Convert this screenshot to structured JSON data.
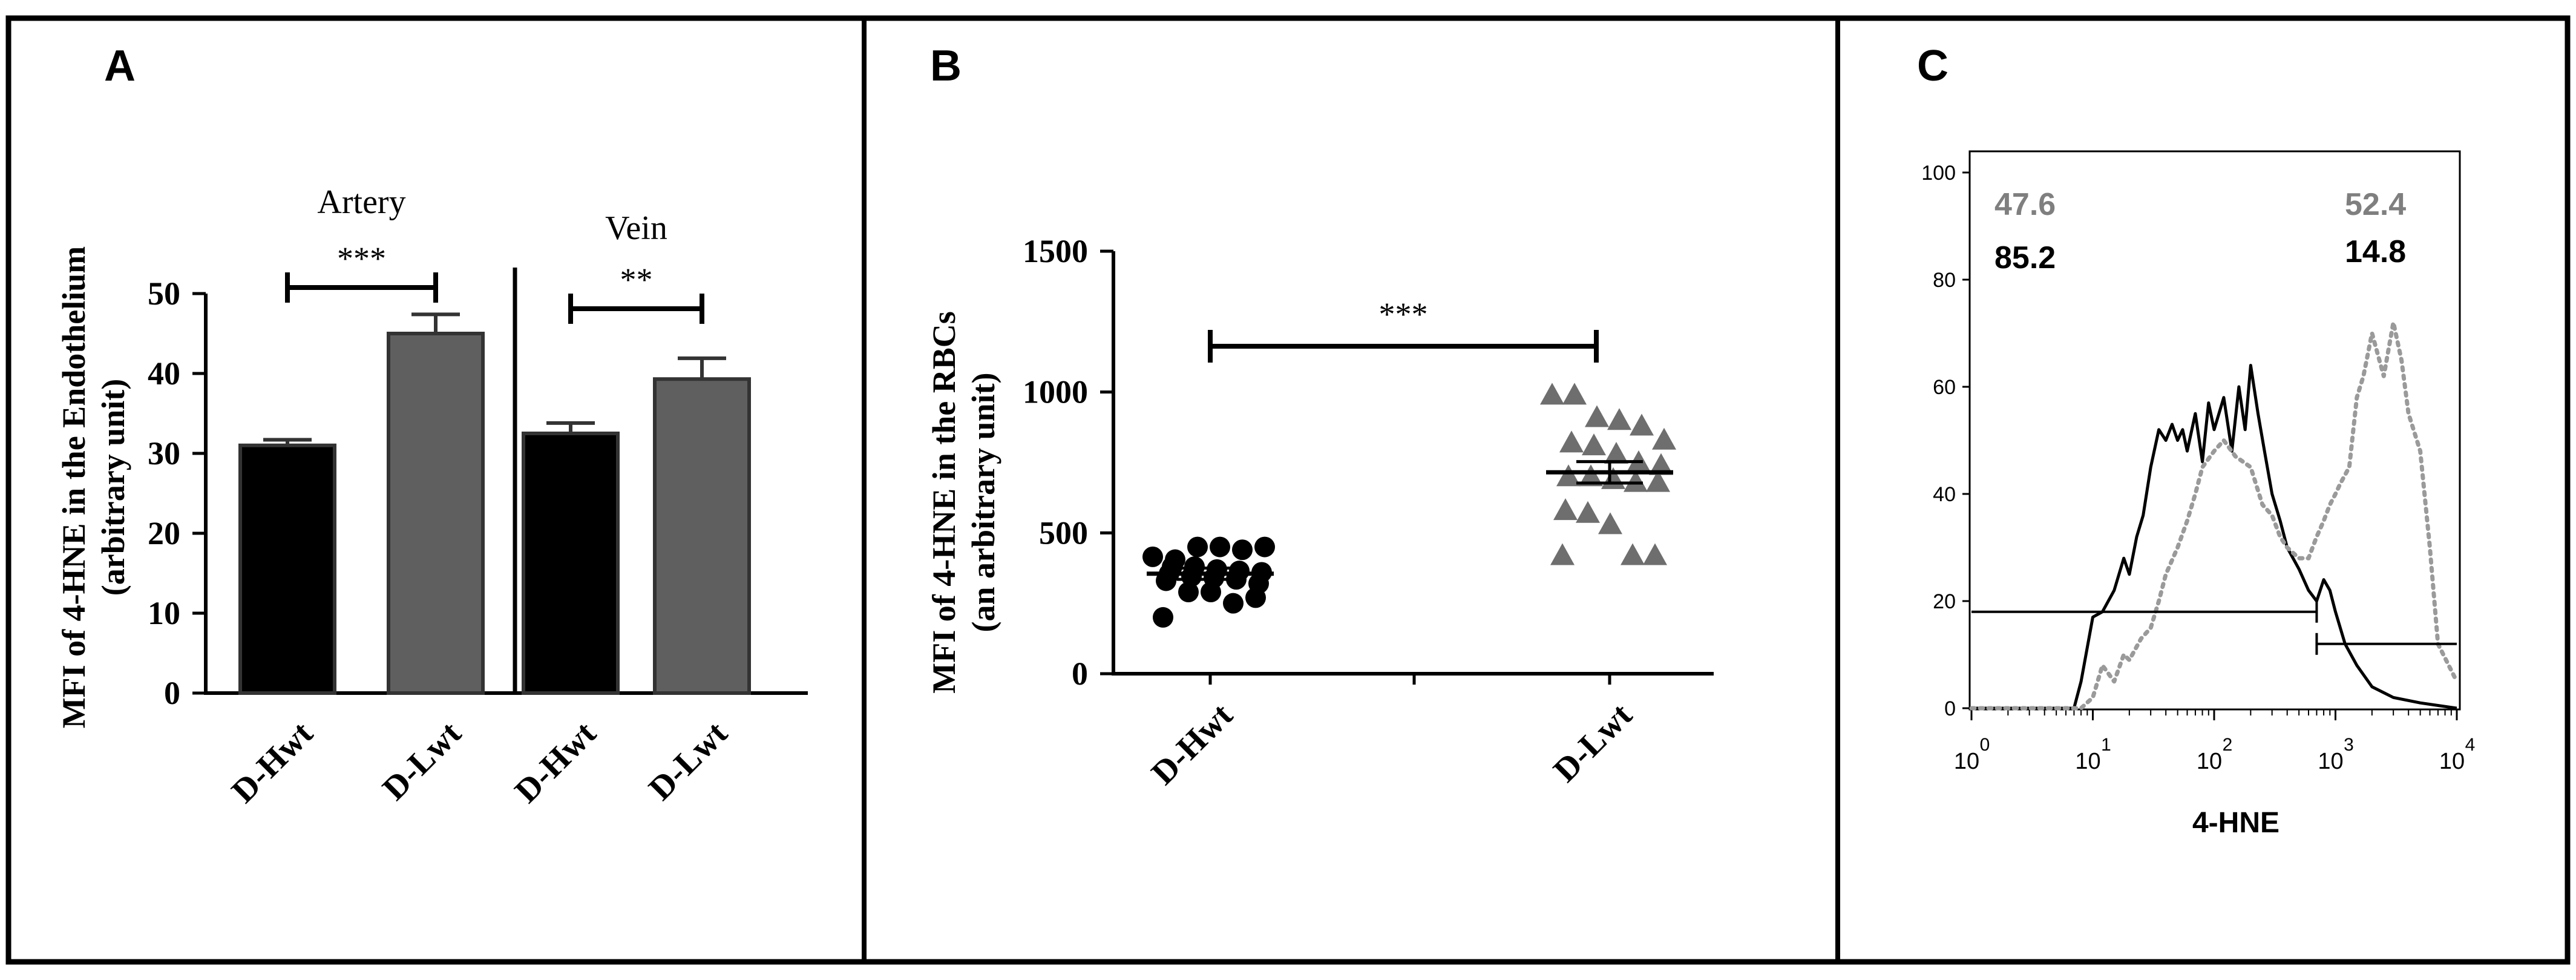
{
  "chart_data": [
    {
      "panel": "A",
      "type": "bar",
      "ylabel_lines": [
        "MFI of 4-HNE in the Endothelium",
        "(arbitrary unit)"
      ],
      "ylim": [
        0,
        50
      ],
      "yticks": [
        "0",
        "10",
        "20",
        "30",
        "40",
        "50"
      ],
      "groups": [
        {
          "name": "Artery",
          "categories": [
            "D-Hwt",
            "D-Lwt"
          ],
          "values": [
            31,
            45
          ],
          "errors": [
            0.7,
            2.4
          ],
          "colors": [
            "#000000",
            "#5f5f5f"
          ],
          "significance": "***"
        },
        {
          "name": "Vein",
          "categories": [
            "D-Hwt",
            "D-Lwt"
          ],
          "values": [
            32.5,
            39.3
          ],
          "errors": [
            1.3,
            2.6
          ],
          "colors": [
            "#000000",
            "#5f5f5f"
          ],
          "significance": "**"
        }
      ]
    },
    {
      "panel": "B",
      "type": "scatter",
      "ylabel_lines": [
        "MFI of 4-HNE in the RBCs",
        "(an arbitrary unit)"
      ],
      "ylim": [
        0,
        1500
      ],
      "yticks": [
        "0",
        "500",
        "1000",
        "1500"
      ],
      "categories": [
        "D-Hwt",
        "D-Lwt"
      ],
      "significance": "***",
      "series": [
        {
          "category": "D-Hwt",
          "marker": "circle",
          "color": "#000000",
          "mean": 355,
          "sem": 20,
          "values": [
            415,
            405,
            450,
            450,
            440,
            450,
            380,
            380,
            370,
            365,
            360,
            355,
            345,
            340,
            335,
            320,
            330,
            290,
            290,
            250,
            270,
            200
          ]
        },
        {
          "category": "D-Lwt",
          "marker": "triangle",
          "color": "#6e6e6e",
          "mean": 715,
          "sem": 38,
          "values": [
            990,
            990,
            910,
            900,
            880,
            830,
            820,
            810,
            780,
            750,
            740,
            700,
            700,
            690,
            680,
            680,
            580,
            570,
            530,
            420,
            420,
            420
          ]
        }
      ]
    },
    {
      "panel": "C",
      "type": "line",
      "xlabel": "4-HNE",
      "ylim": [
        0,
        100
      ],
      "yticks": [
        "0",
        "20",
        "40",
        "60",
        "80",
        "100"
      ],
      "xscale": "log",
      "xlim": [
        1,
        10000
      ],
      "xtick_bases": [
        "10",
        "10",
        "10",
        "10",
        "10"
      ],
      "xtick_exps": [
        "0",
        "1",
        "2",
        "3",
        "4"
      ],
      "gates": [
        {
          "range": [
            1,
            700
          ],
          "y": 18
        },
        {
          "range": [
            700,
            10000
          ],
          "y": 12
        }
      ],
      "annotations": {
        "gray": {
          "left": "47.6",
          "right": "52.4",
          "color": "#7f7f7f"
        },
        "black": {
          "left": "85.2",
          "right": "14.8",
          "color": "#000000"
        }
      },
      "series": [
        {
          "style": "solid",
          "color": "#000000",
          "x": [
            1,
            3,
            7,
            8,
            10,
            12,
            15,
            18,
            20,
            23,
            26,
            30,
            35,
            40,
            45,
            50,
            55,
            60,
            70,
            80,
            90,
            100,
            120,
            140,
            160,
            180,
            200,
            230,
            260,
            300,
            350,
            400,
            500,
            600,
            700,
            800,
            900,
            1000,
            1200,
            1500,
            2000,
            3000,
            5000,
            10000
          ],
          "y": [
            0,
            0,
            0,
            5,
            17,
            18,
            22,
            28,
            25,
            32,
            36,
            45,
            52,
            50,
            53,
            50,
            52,
            48,
            55,
            46,
            57,
            52,
            58,
            48,
            60,
            52,
            64,
            55,
            48,
            40,
            35,
            30,
            26,
            22,
            20,
            24,
            22,
            18,
            12,
            8,
            4,
            2,
            1,
            0
          ]
        },
        {
          "style": "dotted",
          "color": "#9a9a9a",
          "x": [
            1,
            5,
            8,
            10,
            12,
            15,
            18,
            20,
            25,
            30,
            35,
            40,
            50,
            60,
            70,
            80,
            100,
            120,
            150,
            200,
            250,
            300,
            350,
            400,
            500,
            600,
            700,
            800,
            900,
            1000,
            1100,
            1300,
            1500,
            1700,
            2000,
            2300,
            2500,
            3000,
            3500,
            4000,
            5000,
            6000,
            7000,
            10000
          ],
          "y": [
            0,
            0,
            0,
            2,
            8,
            5,
            10,
            9,
            13,
            15,
            20,
            25,
            30,
            35,
            40,
            45,
            48,
            50,
            47,
            45,
            38,
            36,
            32,
            30,
            28,
            28,
            32,
            35,
            38,
            40,
            42,
            45,
            58,
            62,
            70,
            65,
            62,
            72,
            65,
            55,
            48,
            30,
            12,
            5
          ]
        }
      ]
    }
  ]
}
